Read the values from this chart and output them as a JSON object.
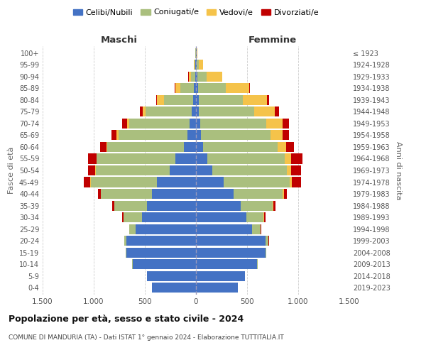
{
  "age_groups": [
    "0-4",
    "5-9",
    "10-14",
    "15-19",
    "20-24",
    "25-29",
    "30-34",
    "35-39",
    "40-44",
    "45-49",
    "50-54",
    "55-59",
    "60-64",
    "65-69",
    "70-74",
    "75-79",
    "80-84",
    "85-89",
    "90-94",
    "95-99",
    "100+"
  ],
  "birth_years": [
    "2019-2023",
    "2014-2018",
    "2009-2013",
    "2004-2008",
    "1999-2003",
    "1994-1998",
    "1989-1993",
    "1984-1988",
    "1979-1983",
    "1974-1978",
    "1969-1973",
    "1964-1968",
    "1959-1963",
    "1954-1958",
    "1949-1953",
    "1944-1948",
    "1939-1943",
    "1934-1938",
    "1929-1933",
    "1924-1928",
    "≤ 1923"
  ],
  "males_celibe": [
    430,
    480,
    620,
    680,
    680,
    590,
    530,
    480,
    430,
    380,
    260,
    200,
    120,
    80,
    65,
    40,
    30,
    20,
    10,
    5,
    2
  ],
  "males_coniugato": [
    0,
    0,
    2,
    5,
    20,
    60,
    180,
    320,
    500,
    650,
    720,
    770,
    750,
    680,
    590,
    450,
    280,
    130,
    40,
    10,
    2
  ],
  "males_vedovo": [
    0,
    0,
    0,
    0,
    0,
    0,
    0,
    0,
    0,
    5,
    5,
    5,
    5,
    15,
    20,
    30,
    70,
    50,
    20,
    5,
    0
  ],
  "males_divorziato": [
    0,
    0,
    0,
    0,
    2,
    5,
    10,
    20,
    30,
    65,
    70,
    80,
    60,
    50,
    45,
    30,
    10,
    5,
    5,
    0,
    0
  ],
  "females_nubile": [
    410,
    480,
    600,
    680,
    680,
    550,
    490,
    440,
    370,
    270,
    160,
    110,
    70,
    50,
    40,
    30,
    25,
    20,
    15,
    10,
    5
  ],
  "females_coniugata": [
    0,
    0,
    2,
    10,
    30,
    80,
    170,
    310,
    480,
    650,
    730,
    760,
    730,
    680,
    650,
    540,
    430,
    270,
    90,
    20,
    3
  ],
  "females_vedova": [
    0,
    0,
    0,
    0,
    0,
    2,
    5,
    5,
    10,
    20,
    40,
    60,
    80,
    120,
    160,
    200,
    240,
    230,
    150,
    40,
    5
  ],
  "females_divorziata": [
    0,
    0,
    0,
    0,
    2,
    5,
    15,
    20,
    30,
    90,
    100,
    110,
    80,
    60,
    60,
    40,
    20,
    10,
    5,
    0,
    0
  ],
  "color_celibe": "#4472C4",
  "color_coniugato": "#AABF7E",
  "color_vedovo": "#F5C34A",
  "color_divorziato": "#C00000",
  "title": "Popolazione per età, sesso e stato civile - 2024",
  "subtitle": "COMUNE DI MANDURIA (TA) - Dati ISTAT 1° gennaio 2024 - Elaborazione TUTTITALIA.IT",
  "label_maschi": "Maschi",
  "label_femmine": "Femmine",
  "ylabel_left": "Fasce di età",
  "ylabel_right": "Anni di nascita",
  "xlim": 1500,
  "legend_labels": [
    "Celibi/Nubili",
    "Coniugati/e",
    "Vedovi/e",
    "Divorziati/e"
  ],
  "background_color": "#ffffff",
  "grid_color": "#cccccc"
}
